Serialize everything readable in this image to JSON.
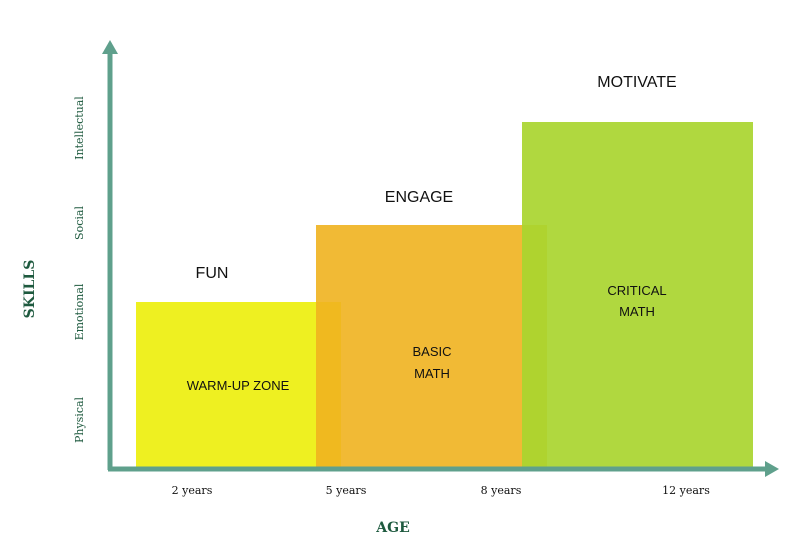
{
  "axes": {
    "y_title": "SKILLS",
    "x_title": "AGE",
    "y_ticks": [
      "Physical",
      "Emotional",
      "Social",
      "Intellectual"
    ],
    "x_ticks": [
      "2 years",
      "5 years",
      "8 years",
      "12 years"
    ],
    "axis_color": "#5fa08c"
  },
  "blocks": [
    {
      "id": "fun",
      "header": "FUN",
      "line1": "WARM-UP ZONE",
      "line2": "",
      "color": "#eef021",
      "level": "Emotional"
    },
    {
      "id": "engage",
      "header": "ENGAGE",
      "line1": "BASIC",
      "line2": "MATH",
      "color": "#f0b21f",
      "level": "Social"
    },
    {
      "id": "motivate",
      "header": "MOTIVATE",
      "line1": "CRITICAL",
      "line2": "MATH",
      "color": "#aed73a",
      "level": "Intellectual"
    }
  ]
}
